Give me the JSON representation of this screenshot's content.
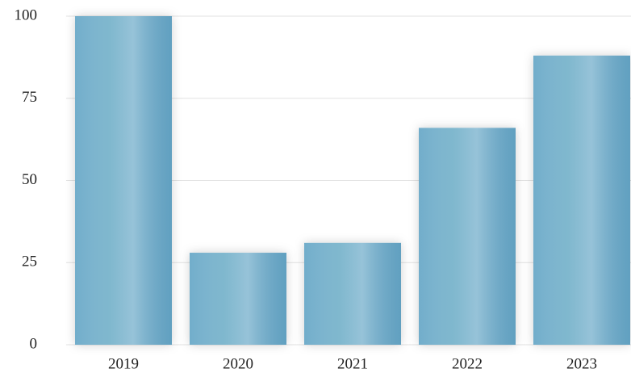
{
  "chart_data": {
    "type": "bar",
    "categories": [
      "2019",
      "2020",
      "2021",
      "2022",
      "2023"
    ],
    "values": [
      100,
      28,
      31,
      66,
      88
    ],
    "color": "#6aa9c8",
    "ylim": [
      0,
      100
    ],
    "yticks": [
      0,
      25,
      50,
      75,
      100
    ],
    "grid": true
  }
}
